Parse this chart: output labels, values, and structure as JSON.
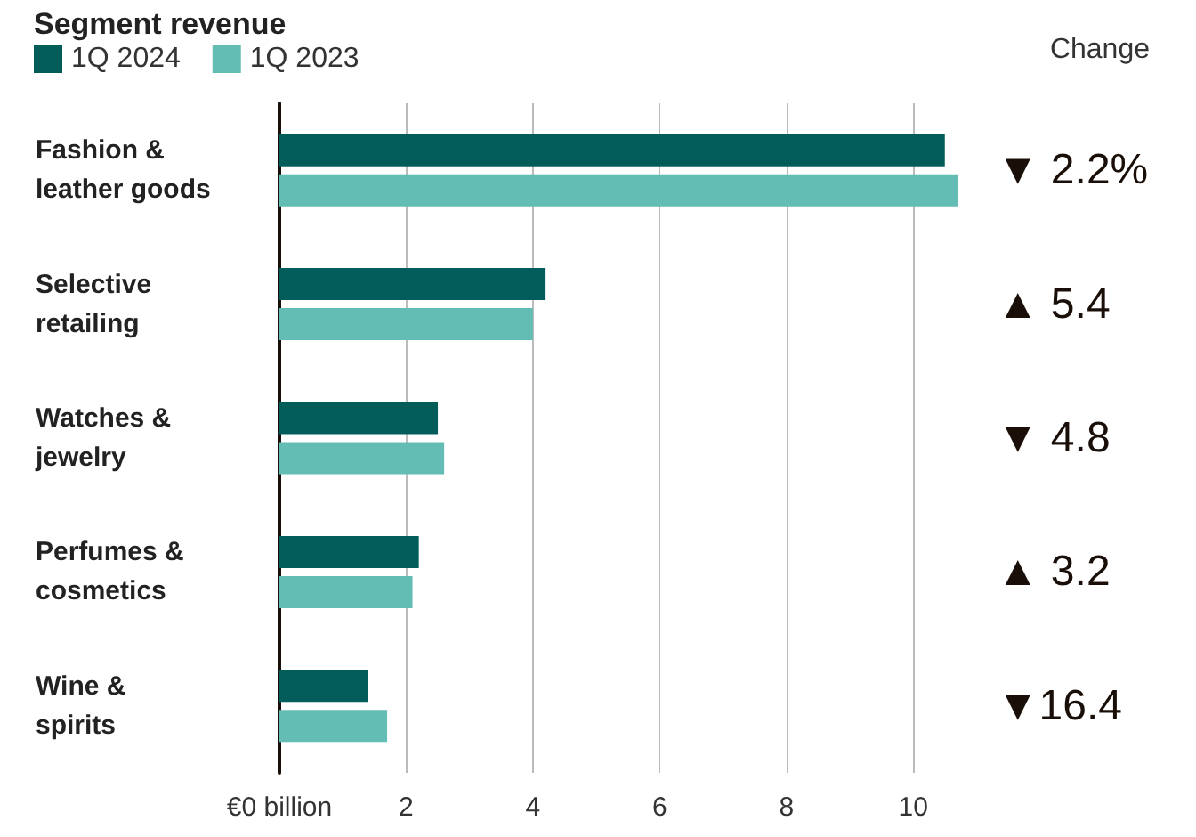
{
  "chart_data": {
    "type": "bar",
    "orientation": "horizontal",
    "title": "Segment revenue",
    "categories": [
      "Fashion & leather goods",
      "Selective retailing",
      "Watches & jewelry",
      "Perfumes & cosmetics",
      "Wine & spirits"
    ],
    "series": [
      {
        "name": "1Q 2024",
        "color": "#025c5a",
        "values": [
          10.5,
          4.2,
          2.5,
          2.2,
          1.4
        ]
      },
      {
        "name": "1Q 2023",
        "color": "#63bdb4",
        "values": [
          10.7,
          4.0,
          2.6,
          2.1,
          1.7
        ]
      }
    ],
    "xlim": [
      0,
      10.7
    ],
    "xticks": [
      {
        "value": 0,
        "label": "€0 billion"
      },
      2,
      4,
      6,
      8,
      10
    ],
    "grid": "x",
    "legend": "top left",
    "annotations": [
      "Change",
      "▼ 2.2%",
      "▲ 5.4",
      "▼ 4.8",
      "▲ 3.2",
      "▼16.4"
    ]
  }
}
